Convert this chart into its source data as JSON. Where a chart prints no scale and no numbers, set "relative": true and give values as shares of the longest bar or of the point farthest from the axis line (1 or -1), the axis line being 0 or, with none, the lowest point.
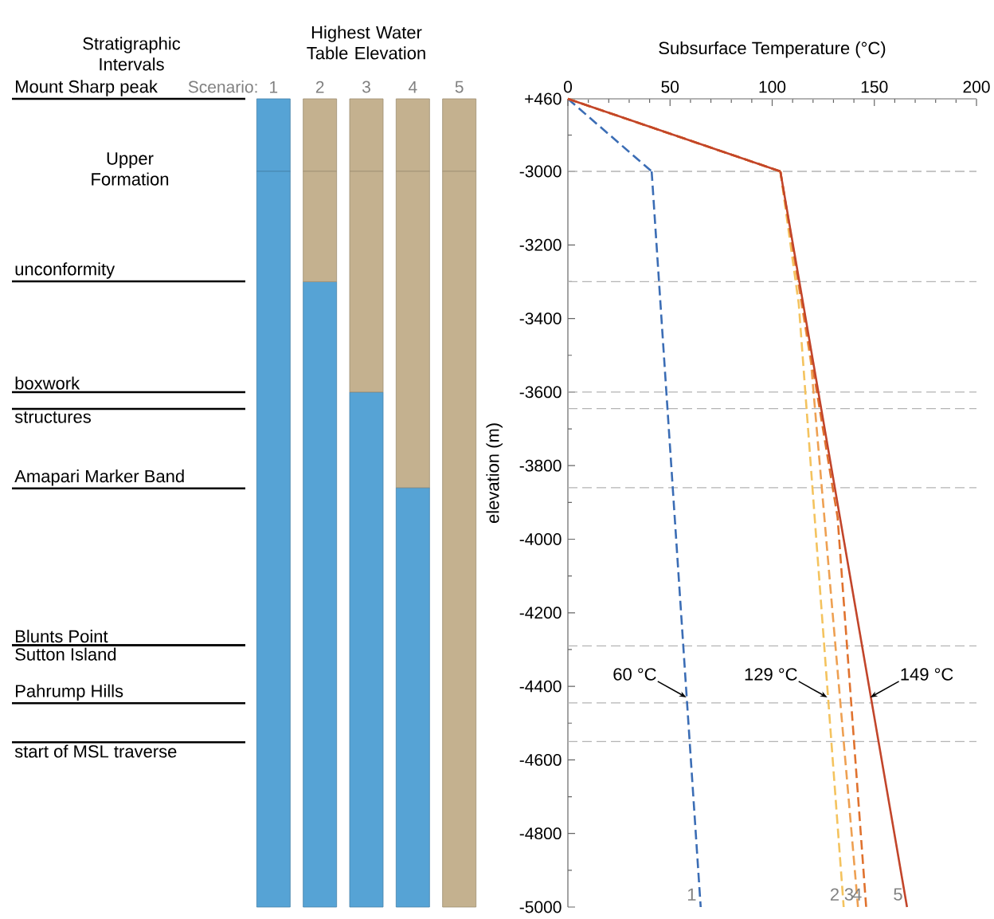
{
  "chart_data": [
    {
      "type": "bar",
      "stacked": true,
      "relative": true,
      "title": "Highest Water Table Elevation",
      "xlabel": "Scenario:",
      "categories": [
        "1",
        "2",
        "3",
        "4",
        "5"
      ],
      "tick_labels": "x",
      "series": [
        {
          "color": "#56a3d5",
          "values": [
            1,
            0,
            0,
            0,
            0
          ]
        },
        {
          "color": "#c4b18f",
          "values": [
            0,
            1,
            1,
            1,
            1
          ]
        }
      ],
      "annotations": [
        "Stratigraphic Intervals",
        "Upper Formation",
        "Mount Sharp peak"
      ]
    },
    {
      "type": "bar",
      "stacked": true,
      "relative": true,
      "categories": [
        "1",
        "2",
        "3",
        "4",
        "5"
      ],
      "tick_labels": false,
      "series": [
        {
          "color": "#56a3d5",
          "values": [
            1,
            0.85,
            0.7,
            0.57,
            0
          ]
        },
        {
          "color": "#c4b18f",
          "values": [
            0,
            0.15,
            0.3,
            0.43,
            1
          ]
        }
      ],
      "annotations": [
        "unconformity",
        "boxwork",
        "structures",
        "Amapari Marker Band",
        "Blunts Point",
        "Sutton Island",
        "Pahrump Hills",
        "start of MSL traverse"
      ]
    },
    {
      "type": "line",
      "xlabel": "Subsurface Temperature (°C)",
      "xlim": [
        0,
        200
      ],
      "xticks": [
        0,
        50,
        100,
        150,
        200
      ],
      "ylim": [
        -3000,
        460
      ],
      "yticks": [
        {
          "value": 460,
          "label": "+460"
        },
        -3000
      ],
      "series": [
        {
          "color": "#3b6db5",
          "line_style": "dashed",
          "x": [
            0,
            41
          ],
          "values": [
            460,
            -3000
          ]
        },
        {
          "color": "#f4c35e",
          "line_style": "dashed",
          "x": [
            0,
            104
          ],
          "values": [
            460,
            -3000
          ]
        },
        {
          "color": "#eea052",
          "line_style": "dashed",
          "x": [
            0,
            104
          ],
          "values": [
            460,
            -3000
          ]
        },
        {
          "color": "#e0722e",
          "line_style": "dashed",
          "x": [
            0,
            104
          ],
          "values": [
            460,
            -3000
          ]
        },
        {
          "color": "#c2452a",
          "line_style": "solid",
          "x": [
            0,
            104
          ],
          "values": [
            460,
            -3000
          ]
        }
      ],
      "ref_lines": [
        {
          "axis": "y",
          "value": 460,
          "color": "#b4b4b4",
          "line_style": "dashed"
        },
        {
          "axis": "y",
          "value": -3000,
          "color": "#b4b4b4",
          "line_style": "dashed"
        }
      ]
    },
    {
      "type": "line",
      "ylabel": "elevation (m)",
      "xlim": [
        0,
        200
      ],
      "ylim": [
        -5000,
        -3000
      ],
      "yticks": [
        -3200,
        -3400,
        -3600,
        -3800,
        -4000,
        -4200,
        -4400,
        -4600,
        -4800,
        -5000
      ],
      "tick_labels": "y",
      "series": [
        {
          "name": "1",
          "color": "#3b6db5",
          "line_style": "dashed",
          "x": [
            41,
            65
          ],
          "values": [
            -3000,
            -5000
          ]
        },
        {
          "name": "2",
          "color": "#f4c35e",
          "line_style": "dashed",
          "x": [
            104,
            113,
            135
          ],
          "values": [
            -3000,
            -3360,
            -5000
          ]
        },
        {
          "name": "3",
          "color": "#eea052",
          "line_style": "dashed",
          "x": [
            104,
            119,
            142
          ],
          "values": [
            -3000,
            -3520,
            -5000
          ]
        },
        {
          "name": "4",
          "color": "#e0722e",
          "line_style": "dashed",
          "x": [
            104,
            132,
            146
          ],
          "values": [
            -3000,
            -3940,
            -5000
          ]
        },
        {
          "name": "5",
          "color": "#c2452a",
          "line_style": "solid",
          "x": [
            104,
            166
          ],
          "values": [
            -3000,
            -5000
          ]
        }
      ],
      "annotations": [
        {
          "text": "60 °C",
          "x": 58,
          "y": -4430
        },
        {
          "text": "129 °C",
          "x": 127,
          "y": -4430
        },
        {
          "text": "149 °C",
          "x": 148,
          "y": -4430
        }
      ],
      "ref_lines": [
        {
          "axis": "y",
          "value": -3300,
          "color": "#b4b4b4",
          "line_style": "dashed"
        },
        {
          "axis": "y",
          "value": -3600,
          "color": "#b4b4b4",
          "line_style": "dashed"
        },
        {
          "axis": "y",
          "value": -3645,
          "color": "#b4b4b4",
          "line_style": "dashed"
        },
        {
          "axis": "y",
          "value": -3860,
          "color": "#b4b4b4",
          "line_style": "dashed"
        },
        {
          "axis": "y",
          "value": -4290,
          "color": "#b4b4b4",
          "line_style": "dashed"
        },
        {
          "axis": "y",
          "value": -4445,
          "color": "#b4b4b4",
          "line_style": "dashed"
        },
        {
          "axis": "y",
          "value": -4550,
          "color": "#b4b4b4",
          "line_style": "dashed"
        }
      ]
    }
  ]
}
